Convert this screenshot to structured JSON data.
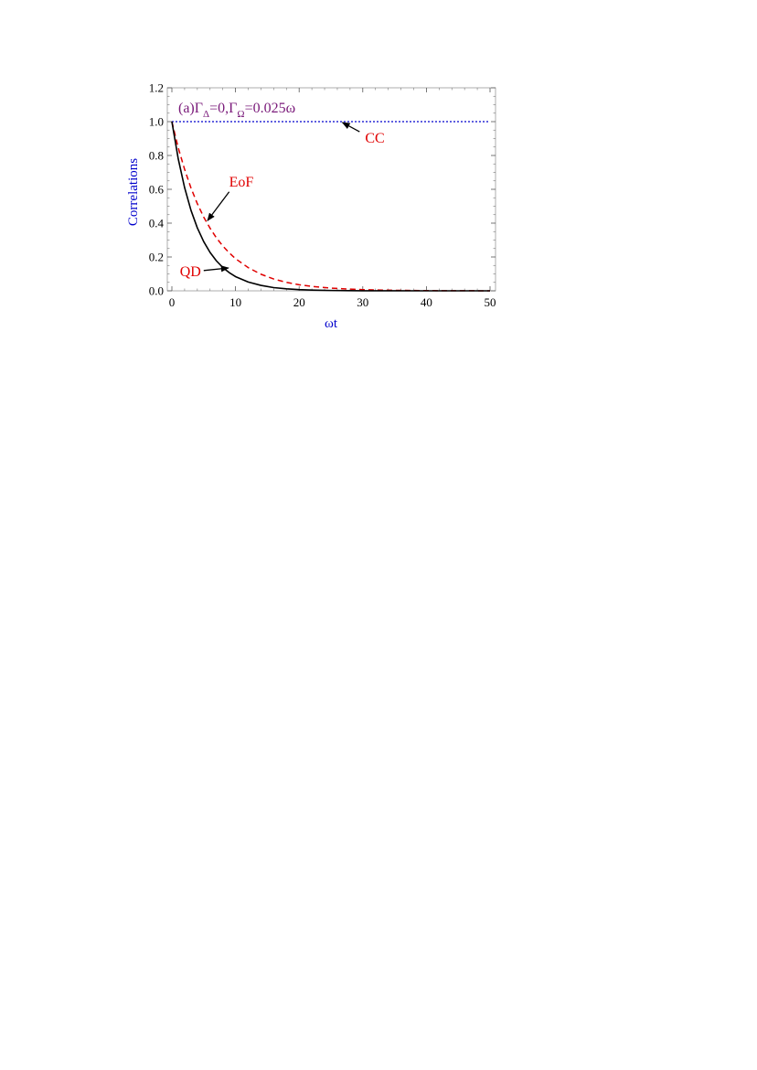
{
  "chart_data": {
    "type": "line",
    "title": {
      "prefix": "(a)Γ",
      "sub1": "Δ",
      "mid": "=0,Γ",
      "sub2": "Ω",
      "suffix": "=0.025ω"
    },
    "xlabel": "ωt",
    "ylabel": "Correlations",
    "xlim": [
      0,
      50
    ],
    "ylim": [
      0,
      1.2
    ],
    "xticks": [
      0,
      10,
      20,
      30,
      40,
      50
    ],
    "yticks": [
      0.0,
      0.2,
      0.4,
      0.6,
      0.8,
      1.0,
      1.2
    ],
    "ytick_labels": [
      "0.0",
      "0.2",
      "0.4",
      "0.6",
      "0.8",
      "1.0",
      "1.2"
    ],
    "grid": false,
    "x": [
      0,
      1,
      2,
      3,
      4,
      5,
      6,
      7,
      8,
      9,
      10,
      12,
      14,
      16,
      18,
      20,
      22,
      25,
      28,
      30,
      32,
      35,
      40,
      45,
      50
    ],
    "series": [
      {
        "name": "CC",
        "color": "#2b2bd6",
        "style": "dotted",
        "values": [
          1.0,
          1.0,
          1.0,
          1.0,
          1.0,
          1.0,
          1.0,
          1.0,
          1.0,
          1.0,
          1.0,
          1.0,
          1.0,
          1.0,
          1.0,
          1.0,
          1.0,
          1.0,
          1.0,
          1.0,
          1.0,
          1.0,
          1.0,
          1.0,
          1.0
        ]
      },
      {
        "name": "EoF",
        "color": "#e00000",
        "style": "dashed",
        "values": [
          1.0,
          0.845,
          0.718,
          0.608,
          0.515,
          0.436,
          0.37,
          0.313,
          0.265,
          0.225,
          0.19,
          0.137,
          0.098,
          0.07,
          0.05,
          0.036,
          0.026,
          0.016,
          0.01,
          0.007,
          0.005,
          0.003,
          0.0013,
          0.0005,
          0.0002
        ]
      },
      {
        "name": "QD",
        "color": "#000000",
        "style": "solid",
        "values": [
          1.0,
          0.78,
          0.61,
          0.476,
          0.372,
          0.291,
          0.227,
          0.177,
          0.138,
          0.108,
          0.084,
          0.052,
          0.032,
          0.019,
          0.012,
          0.007,
          0.0045,
          0.002,
          0.001,
          0.0006,
          0.0004,
          0.0002,
          0.0,
          0.0,
          0.0
        ]
      }
    ],
    "annotations": [
      {
        "label": "CC",
        "arrow_tail": [
          29.5,
          0.94
        ],
        "arrow_head": [
          26.8,
          0.995
        ]
      },
      {
        "label": "EoF",
        "arrow_tail": [
          9.0,
          0.585
        ],
        "arrow_head": [
          5.6,
          0.415
        ]
      },
      {
        "label": "QD",
        "arrow_tail": [
          5.0,
          0.12
        ],
        "arrow_head": [
          8.9,
          0.135
        ]
      }
    ]
  }
}
